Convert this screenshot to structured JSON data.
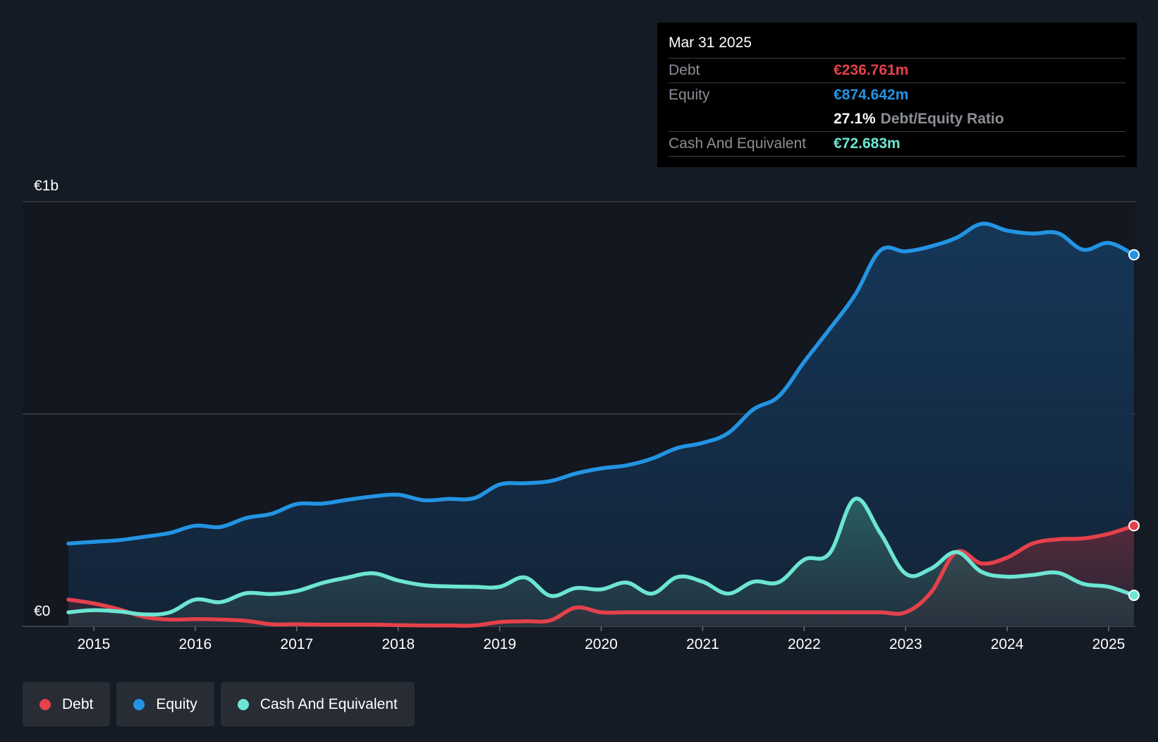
{
  "colors": {
    "background": "#151b24",
    "plot_background": "#121720",
    "debt": "#e5414b",
    "equity": "#2394e3",
    "cash": "#6de5d3",
    "grid": "#3b4048",
    "text": "#ffffff",
    "muted": "#8b8f96"
  },
  "tooltip": {
    "date": "Mar 31 2025",
    "debt_label": "Debt",
    "debt_value": "€236.761m",
    "equity_label": "Equity",
    "equity_value": "€874.642m",
    "ratio_value": "27.1%",
    "ratio_label": "Debt/Equity Ratio",
    "cash_label": "Cash And Equivalent",
    "cash_value": "€72.683m"
  },
  "legend": [
    {
      "label": "Debt",
      "color": "#e5414b"
    },
    {
      "label": "Equity",
      "color": "#2394e3"
    },
    {
      "label": "Cash And Equivalent",
      "color": "#6de5d3"
    }
  ],
  "chart_data": {
    "type": "area",
    "title": "",
    "xlabel": "",
    "ylabel": "",
    "y_unit": "€m",
    "ylim": [
      0,
      1000
    ],
    "xlim": [
      2014.75,
      2025.25
    ],
    "y_tick_labels": [
      {
        "value": 1000,
        "label": "€1b"
      },
      {
        "value": 0,
        "label": "€0"
      }
    ],
    "gridlines_y": [
      0,
      500,
      1000
    ],
    "x_ticks": [
      2015,
      2016,
      2017,
      2018,
      2019,
      2020,
      2021,
      2022,
      2023,
      2024,
      2025
    ],
    "x_tick_labels": [
      "2015",
      "2016",
      "2017",
      "2018",
      "2019",
      "2020",
      "2021",
      "2022",
      "2023",
      "2024",
      "2025"
    ],
    "series": [
      {
        "name": "Equity",
        "color": "#2394e3",
        "x": [
          2014.75,
          2015.0,
          2015.25,
          2015.5,
          2015.75,
          2016.0,
          2016.25,
          2016.5,
          2016.75,
          2017.0,
          2017.25,
          2017.5,
          2017.75,
          2018.0,
          2018.25,
          2018.5,
          2018.75,
          2019.0,
          2019.25,
          2019.5,
          2019.75,
          2020.0,
          2020.25,
          2020.5,
          2020.75,
          2021.0,
          2021.25,
          2021.5,
          2021.75,
          2022.0,
          2022.25,
          2022.5,
          2022.75,
          2023.0,
          2023.25,
          2023.5,
          2023.75,
          2024.0,
          2024.25,
          2024.5,
          2024.75,
          2025.0,
          2025.25
        ],
        "values": [
          195,
          199,
          203,
          211,
          220,
          237,
          234,
          255,
          265,
          288,
          289,
          298,
          306,
          310,
          297,
          300,
          302,
          334,
          337,
          342,
          360,
          372,
          379,
          395,
          420,
          432,
          455,
          511,
          542,
          623,
          700,
          780,
          885,
          883,
          895,
          915,
          948,
          932,
          925,
          926,
          887,
          903,
          875
        ]
      },
      {
        "name": "Debt",
        "color": "#e5414b",
        "x": [
          2014.75,
          2015.0,
          2015.25,
          2015.5,
          2015.75,
          2016.0,
          2016.25,
          2016.5,
          2016.75,
          2017.0,
          2017.25,
          2017.5,
          2017.75,
          2018.0,
          2018.25,
          2018.5,
          2018.75,
          2019.0,
          2019.25,
          2019.5,
          2019.75,
          2020.0,
          2020.25,
          2020.5,
          2020.75,
          2021.0,
          2021.25,
          2021.5,
          2021.75,
          2022.0,
          2022.25,
          2022.5,
          2022.75,
          2023.0,
          2023.25,
          2023.5,
          2023.75,
          2024.0,
          2024.25,
          2024.5,
          2024.75,
          2025.0,
          2025.25
        ],
        "values": [
          63,
          54,
          40,
          22,
          16,
          17,
          16,
          13,
          5,
          5,
          4,
          4,
          4,
          3,
          2,
          2,
          2,
          10,
          12,
          14,
          44,
          33,
          33,
          33,
          33,
          33,
          33,
          33,
          33,
          33,
          33,
          33,
          33,
          33,
          80,
          175,
          148,
          162,
          195,
          205,
          207,
          218,
          237
        ]
      },
      {
        "name": "Cash And Equivalent",
        "color": "#6de5d3",
        "x": [
          2014.75,
          2015.0,
          2015.25,
          2015.5,
          2015.75,
          2016.0,
          2016.25,
          2016.5,
          2016.75,
          2017.0,
          2017.25,
          2017.5,
          2017.75,
          2018.0,
          2018.25,
          2018.5,
          2018.75,
          2019.0,
          2019.25,
          2019.5,
          2019.75,
          2020.0,
          2020.25,
          2020.5,
          2020.75,
          2021.0,
          2021.25,
          2021.5,
          2021.75,
          2022.0,
          2022.25,
          2022.5,
          2022.75,
          2023.0,
          2023.25,
          2023.5,
          2023.75,
          2024.0,
          2024.25,
          2024.5,
          2024.75,
          2025.0,
          2025.25
        ],
        "values": [
          33,
          38,
          35,
          28,
          33,
          63,
          57,
          78,
          76,
          83,
          102,
          115,
          125,
          108,
          97,
          94,
          93,
          93,
          115,
          72,
          90,
          87,
          103,
          77,
          116,
          105,
          77,
          105,
          104,
          157,
          172,
          300,
          220,
          124,
          136,
          175,
          128,
          117,
          121,
          126,
          100,
          93,
          73
        ]
      }
    ]
  }
}
